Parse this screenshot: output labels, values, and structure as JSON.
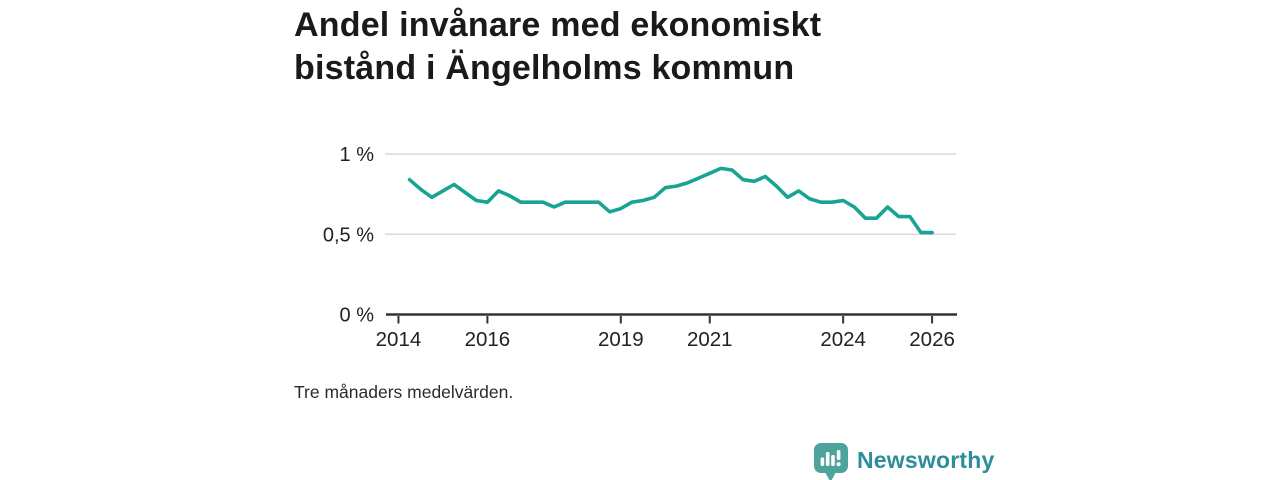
{
  "page": {
    "background": "#ffffff"
  },
  "header": {
    "title": "Andel invånare med ekonomiskt bistånd i Ängelholms kommun"
  },
  "note": "Tre månaders medelvärden.",
  "branding": {
    "name": "Newsworthy",
    "logo_icon": "bar-chart-speech-bubble-icon",
    "badge_color": "#4da49b",
    "text_color": "#2e8d9a"
  },
  "chart_data": {
    "type": "line",
    "title": "Andel invånare med ekonomiskt bistånd i Ängelholms kommun",
    "footnote": "Tre månaders medelvärden.",
    "unit": "%",
    "grid": "horizontal-only",
    "legend": "none",
    "line_color": "#18a492",
    "grid_color": "#d9d9d9",
    "axis_color": "#333333",
    "label_color": "#222222",
    "xlim": [
      2013.72,
      2026.56
    ],
    "ylim": [
      0,
      1
    ],
    "x_ticks": [
      {
        "value": 2014,
        "label": "2014"
      },
      {
        "value": 2016,
        "label": "2016"
      },
      {
        "value": 2019,
        "label": "2019"
      },
      {
        "value": 2021,
        "label": "2021"
      },
      {
        "value": 2024,
        "label": "2024"
      },
      {
        "value": 2026,
        "label": "2026"
      }
    ],
    "y_ticks": [
      {
        "value": 0,
        "label": "0 %"
      },
      {
        "value": 0.5,
        "label": "0,5 %"
      },
      {
        "value": 1,
        "label": "1 %"
      }
    ],
    "series": [
      {
        "name": "Andel invånare med ekonomiskt bistånd (%)",
        "x_start": 2014.25,
        "x_step": 0.25,
        "values": [
          0.84,
          0.78,
          0.73,
          0.77,
          0.81,
          0.76,
          0.71,
          0.7,
          0.77,
          0.74,
          0.7,
          0.7,
          0.7,
          0.67,
          0.7,
          0.7,
          0.7,
          0.7,
          0.64,
          0.66,
          0.7,
          0.71,
          0.73,
          0.79,
          0.8,
          0.82,
          0.85,
          0.88,
          0.91,
          0.9,
          0.84,
          0.83,
          0.86,
          0.8,
          0.73,
          0.77,
          0.72,
          0.7,
          0.7,
          0.71,
          0.67,
          0.6,
          0.6,
          0.67,
          0.61,
          0.61,
          0.51,
          0.51
        ]
      }
    ]
  }
}
